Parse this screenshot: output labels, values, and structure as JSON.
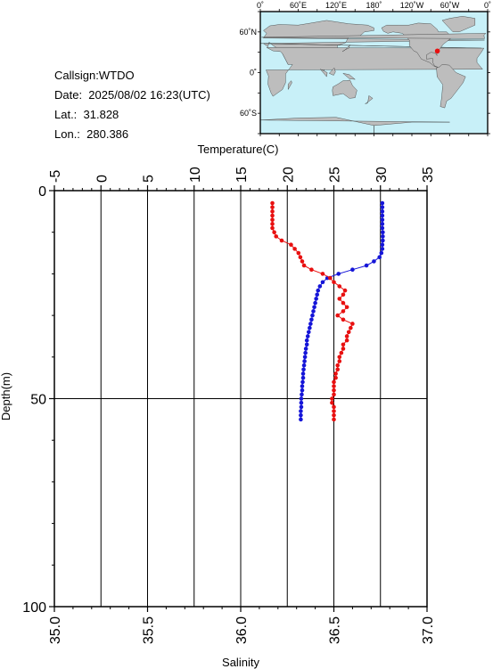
{
  "info": {
    "callsign": "Callsign:WTDO",
    "date": "Date:  2025/08/02 16:23(UTC)",
    "lat": "Lat.:  31.828",
    "lon": "Lon.:  280.386"
  },
  "map": {
    "top_labels": [
      "0˚",
      "60˚E",
      "120˚E",
      "180˚",
      "120˚W",
      "60˚W",
      "0˚"
    ],
    "left_labels": [
      "60˚N",
      "0˚",
      "60˚S"
    ],
    "ocean_color": "#c8f0f8",
    "land_color": "#bdbdbd",
    "marker_color": "#e81010",
    "station": {
      "lon": 280.386,
      "lat": 31.828
    }
  },
  "chart_data": {
    "type": "line",
    "temperature_axis": {
      "label": "Temperature(C)",
      "range": [
        -5,
        35
      ],
      "ticks": [
        "-5",
        "0",
        "5",
        "10",
        "15",
        "20",
        "25",
        "30",
        "35"
      ]
    },
    "salinity_axis": {
      "label": "Salinity",
      "range": [
        35.0,
        37.0
      ],
      "ticks": [
        "35.0",
        "35.5",
        "36.0",
        "36.5",
        "37.0"
      ]
    },
    "depth_axis": {
      "label": "Depth(m)",
      "range": [
        0,
        100
      ],
      "ticks": [
        "0",
        "50",
        "100"
      ],
      "inverted": true
    },
    "grid": true,
    "series": [
      {
        "variable": "temperature",
        "color": "#1515d8",
        "points": [
          [
            30.2,
            3
          ],
          [
            30.2,
            4
          ],
          [
            30.2,
            5
          ],
          [
            30.2,
            6
          ],
          [
            30.2,
            7
          ],
          [
            30.2,
            8
          ],
          [
            30.2,
            9
          ],
          [
            30.25,
            10
          ],
          [
            30.25,
            11
          ],
          [
            30.25,
            12
          ],
          [
            30.2,
            13
          ],
          [
            30.2,
            14
          ],
          [
            30.1,
            15
          ],
          [
            29.9,
            16
          ],
          [
            29.3,
            17
          ],
          [
            28.5,
            18
          ],
          [
            27.0,
            19
          ],
          [
            25.5,
            20
          ],
          [
            24.3,
            21
          ],
          [
            23.8,
            22
          ],
          [
            23.5,
            23
          ],
          [
            23.3,
            24
          ],
          [
            23.2,
            25
          ],
          [
            23.1,
            26
          ],
          [
            23.0,
            27
          ],
          [
            22.9,
            28
          ],
          [
            22.8,
            29
          ],
          [
            22.7,
            30
          ],
          [
            22.6,
            31
          ],
          [
            22.5,
            32
          ],
          [
            22.4,
            33
          ],
          [
            22.3,
            34
          ],
          [
            22.2,
            35
          ],
          [
            22.1,
            36
          ],
          [
            22.1,
            37
          ],
          [
            22.0,
            38
          ],
          [
            21.95,
            39
          ],
          [
            21.9,
            40
          ],
          [
            21.85,
            41
          ],
          [
            21.8,
            42
          ],
          [
            21.75,
            43
          ],
          [
            21.7,
            44
          ],
          [
            21.7,
            45
          ],
          [
            21.65,
            46
          ],
          [
            21.6,
            47
          ],
          [
            21.6,
            48
          ],
          [
            21.55,
            49
          ],
          [
            21.5,
            50
          ],
          [
            21.5,
            51
          ],
          [
            21.5,
            52
          ],
          [
            21.45,
            53
          ],
          [
            21.45,
            54
          ],
          [
            21.45,
            55
          ]
        ]
      },
      {
        "variable": "salinity",
        "color": "#e81010",
        "points": [
          [
            36.17,
            3
          ],
          [
            36.17,
            4
          ],
          [
            36.17,
            5
          ],
          [
            36.17,
            6
          ],
          [
            36.17,
            7
          ],
          [
            36.17,
            8
          ],
          [
            36.17,
            9
          ],
          [
            36.18,
            10
          ],
          [
            36.19,
            11
          ],
          [
            36.22,
            12
          ],
          [
            36.27,
            13
          ],
          [
            36.29,
            14
          ],
          [
            36.31,
            15
          ],
          [
            36.32,
            16
          ],
          [
            36.33,
            17
          ],
          [
            36.34,
            18
          ],
          [
            36.38,
            19
          ],
          [
            36.44,
            20
          ],
          [
            36.48,
            21
          ],
          [
            36.5,
            22
          ],
          [
            36.53,
            23
          ],
          [
            36.56,
            24
          ],
          [
            36.55,
            25
          ],
          [
            36.53,
            26
          ],
          [
            36.55,
            27
          ],
          [
            36.57,
            28
          ],
          [
            36.55,
            29
          ],
          [
            36.52,
            30
          ],
          [
            36.55,
            31
          ],
          [
            36.6,
            32
          ],
          [
            36.59,
            33
          ],
          [
            36.58,
            34
          ],
          [
            36.57,
            35
          ],
          [
            36.57,
            36
          ],
          [
            36.55,
            37
          ],
          [
            36.55,
            38
          ],
          [
            36.54,
            39
          ],
          [
            36.53,
            40
          ],
          [
            36.53,
            41
          ],
          [
            36.52,
            42
          ],
          [
            36.52,
            43
          ],
          [
            36.51,
            44
          ],
          [
            36.51,
            45
          ],
          [
            36.5,
            46
          ],
          [
            36.5,
            47
          ],
          [
            36.5,
            48
          ],
          [
            36.5,
            49
          ],
          [
            36.49,
            50
          ],
          [
            36.49,
            51
          ],
          [
            36.5,
            52
          ],
          [
            36.5,
            53
          ],
          [
            36.5,
            54
          ],
          [
            36.5,
            55
          ]
        ]
      }
    ]
  }
}
